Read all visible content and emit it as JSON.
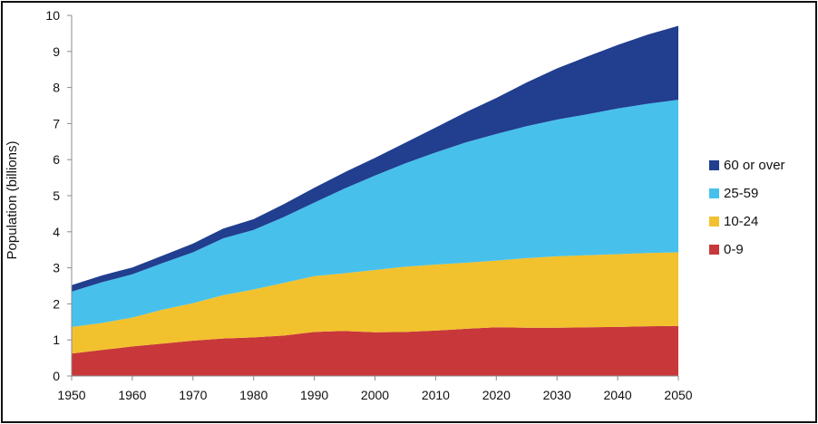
{
  "chart_data": {
    "type": "area",
    "stacked": true,
    "title": "",
    "xlabel": "",
    "ylabel": "Population (billions)",
    "xlim": [
      1950,
      2050
    ],
    "ylim": [
      0,
      10
    ],
    "x_ticks": [
      "1950",
      "1960",
      "1970",
      "1980",
      "1990",
      "2000",
      "2010",
      "2020",
      "2030",
      "2040",
      "2050"
    ],
    "y_ticks": [
      "0",
      "1",
      "2",
      "3",
      "4",
      "5",
      "6",
      "7",
      "8",
      "9",
      "10"
    ],
    "grid": false,
    "legend_position": "right",
    "x": [
      1950,
      1955,
      1960,
      1965,
      1970,
      1975,
      1980,
      1985,
      1990,
      1995,
      2000,
      2005,
      2010,
      2015,
      2020,
      2025,
      2030,
      2035,
      2040,
      2045,
      2050
    ],
    "series": [
      {
        "name": "0-9",
        "color": "#C8383A",
        "values": [
          0.62,
          0.72,
          0.82,
          0.9,
          0.98,
          1.04,
          1.07,
          1.12,
          1.22,
          1.25,
          1.21,
          1.22,
          1.26,
          1.31,
          1.35,
          1.34,
          1.34,
          1.35,
          1.36,
          1.38,
          1.39
        ]
      },
      {
        "name": "10-24",
        "color": "#F2C12E",
        "values": [
          0.74,
          0.75,
          0.8,
          0.94,
          1.04,
          1.2,
          1.33,
          1.46,
          1.55,
          1.6,
          1.73,
          1.81,
          1.83,
          1.83,
          1.85,
          1.93,
          1.98,
          2.0,
          2.02,
          2.03,
          2.04
        ]
      },
      {
        "name": "25-59",
        "color": "#47C1EC",
        "values": [
          0.98,
          1.13,
          1.2,
          1.29,
          1.41,
          1.58,
          1.65,
          1.83,
          2.04,
          2.35,
          2.62,
          2.87,
          3.11,
          3.34,
          3.51,
          3.66,
          3.79,
          3.91,
          4.04,
          4.14,
          4.23
        ]
      },
      {
        "name": "60 or over",
        "color": "#213E8F",
        "values": [
          0.18,
          0.19,
          0.19,
          0.21,
          0.24,
          0.27,
          0.3,
          0.36,
          0.41,
          0.45,
          0.49,
          0.57,
          0.69,
          0.84,
          1.0,
          1.21,
          1.42,
          1.6,
          1.76,
          1.92,
          2.05
        ]
      }
    ]
  }
}
